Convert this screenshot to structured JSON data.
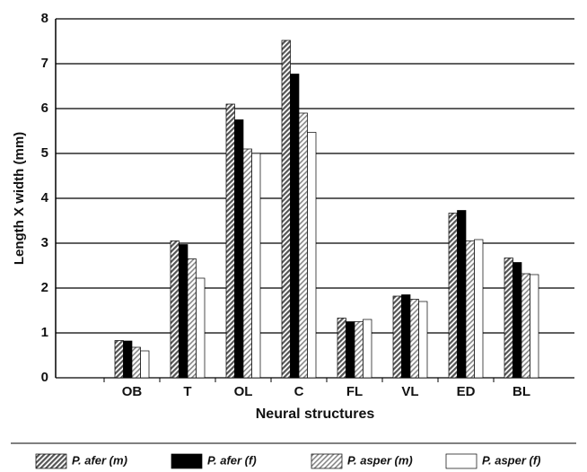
{
  "chart_data": {
    "type": "bar",
    "ylabel": "Length X width (mm)",
    "xlabel": "Neural structures",
    "categories": [
      "OB",
      "T",
      "OL",
      "C",
      "FL",
      "VL",
      "ED",
      "BL"
    ],
    "series": [
      {
        "name": "P. afer (m)",
        "color": "#555555",
        "hatch": true,
        "values": [
          0.83,
          3.05,
          6.1,
          7.52,
          1.33,
          1.82,
          3.67,
          2.67
        ]
      },
      {
        "name": "P. afer (f)",
        "color": "#000000",
        "hatch": false,
        "values": [
          0.82,
          2.97,
          5.75,
          6.77,
          1.25,
          1.85,
          3.73,
          2.57
        ]
      },
      {
        "name": "P. asper (m)",
        "color": "#888888",
        "hatch": true,
        "values": [
          0.68,
          2.65,
          5.1,
          5.9,
          1.25,
          1.75,
          3.05,
          2.32
        ]
      },
      {
        "name": "P. asper (f)",
        "color": "#ffffff",
        "hatch": false,
        "values": [
          0.6,
          2.22,
          5.0,
          5.47,
          1.3,
          1.7,
          3.08,
          2.3
        ]
      }
    ],
    "ylim": [
      0,
      8
    ],
    "yticks": [
      0,
      1,
      2,
      3,
      4,
      5,
      6,
      7,
      8
    ],
    "grid": true
  }
}
